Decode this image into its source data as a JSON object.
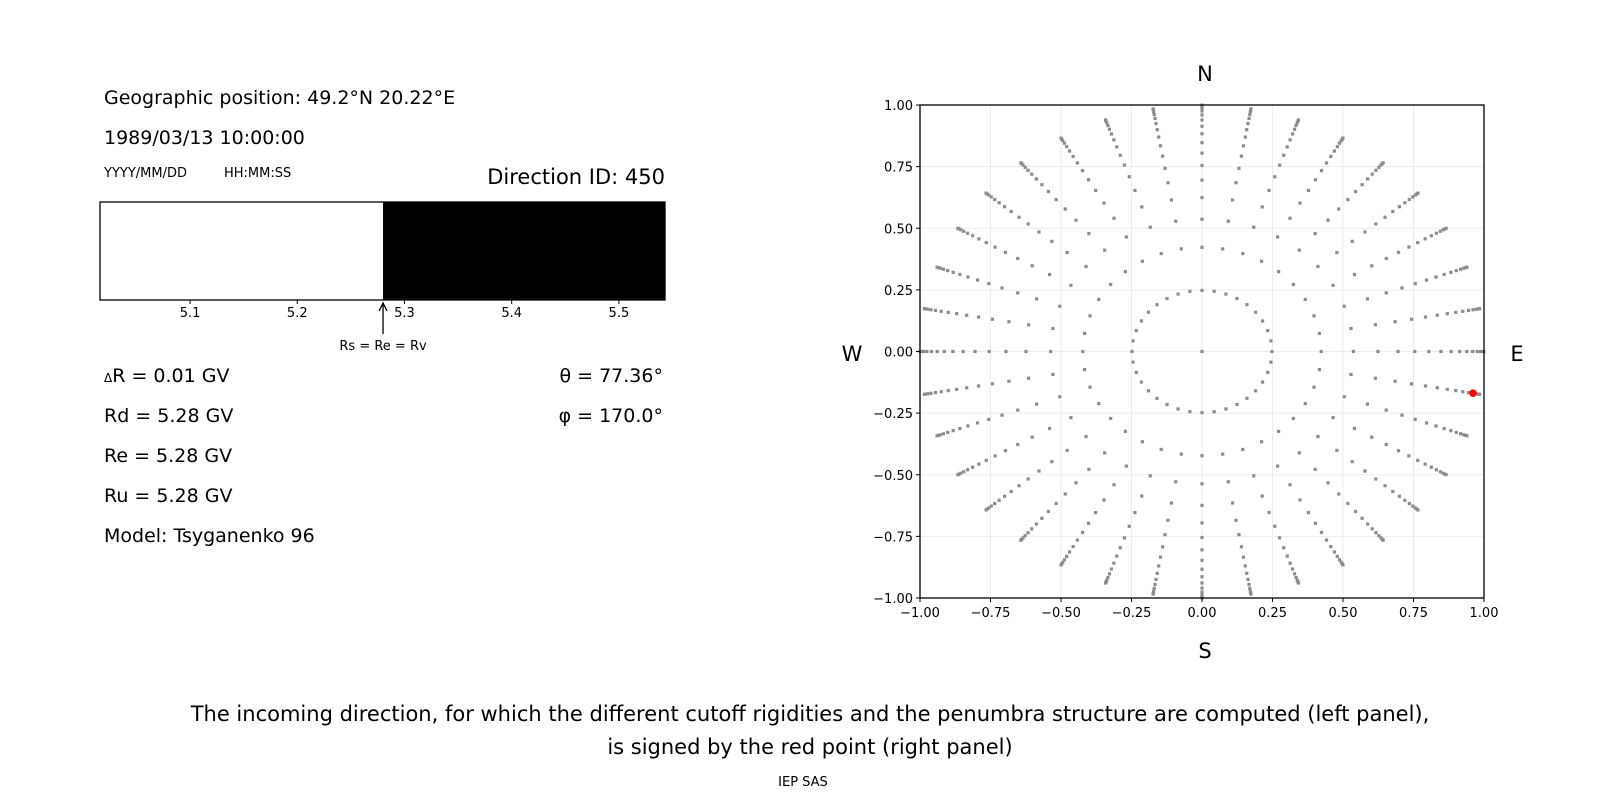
{
  "header": {
    "geo_position": "Geographic position: 49.2°N 20.22°E",
    "datetime": "1989/03/13 10:00:00",
    "date_format": "YYYY/MM/DD",
    "time_format": "HH:MM:SS",
    "direction_id": "Direction ID: 450"
  },
  "values": {
    "delta_r_symbol": "Δ",
    "delta_r": "R = 0.01 GV",
    "rd": "Rd = 5.28 GV",
    "re": "Re = 5.28 GV",
    "ru": "Ru = 5.28 GV",
    "model": "Model: Tsyganenko 96",
    "theta": "θ = 77.36°",
    "phi": "φ = 170.0°"
  },
  "caption": {
    "line1": "The incoming direction, for which the different cutoff rigidities and the penumbra structure are computed (left panel),",
    "line2": "is signed by the red point (right panel)",
    "credit": "IEP SAS"
  },
  "chart_data": [
    {
      "type": "bar",
      "orientation": "horizontal-strip",
      "xlim": [
        5.016,
        5.543
      ],
      "xticks": [
        5.1,
        5.2,
        5.3,
        5.4,
        5.5
      ],
      "xtick_labels": [
        "5.1",
        "5.2",
        "5.3",
        "5.4",
        "5.5"
      ],
      "segments": [
        {
          "from": 5.016,
          "to": 5.28,
          "color": "#ffffff",
          "meaning": "allowed"
        },
        {
          "from": 5.28,
          "to": 5.543,
          "color": "#000000",
          "meaning": "forbidden"
        }
      ],
      "annotation": {
        "text": "Rs = Re = Rv",
        "x": 5.28
      }
    },
    {
      "type": "scatter",
      "xlim": [
        -1,
        1
      ],
      "ylim": [
        -1,
        1
      ],
      "xticks": [
        -1,
        -0.75,
        -0.5,
        -0.25,
        0,
        0.25,
        0.5,
        0.75,
        1
      ],
      "xtick_labels": [
        "−1.00",
        "−0.75",
        "−0.50",
        "−0.25",
        "0.00",
        "0.25",
        "0.50",
        "0.75",
        "1.00"
      ],
      "yticks": [
        -1,
        -0.75,
        -0.5,
        -0.25,
        0,
        0.25,
        0.5,
        0.75,
        1
      ],
      "ytick_labels": [
        "−1.00",
        "−0.75",
        "−0.50",
        "−0.25",
        "0.00",
        "0.25",
        "0.50",
        "0.75",
        "1.00"
      ],
      "grid": true,
      "compass": {
        "top": "N",
        "bottom": "S",
        "left": "W",
        "right": "E"
      },
      "direction_grid": {
        "center_point": true,
        "rings": 16,
        "points_per_ring": 36,
        "azimuth_step_deg": 10,
        "ring_cos_zenith": [
          0.96875,
          0.90625,
          0.84375,
          0.78125,
          0.71875,
          0.65625,
          0.59375,
          0.53125,
          0.46875,
          0.40625,
          0.34375,
          0.28125,
          0.21875,
          0.15625,
          0.09375,
          0.03125
        ]
      },
      "point_color": "#8c8c8c",
      "selected_point": {
        "x": 0.961,
        "y": -0.169,
        "color": "#ff0000"
      }
    }
  ]
}
